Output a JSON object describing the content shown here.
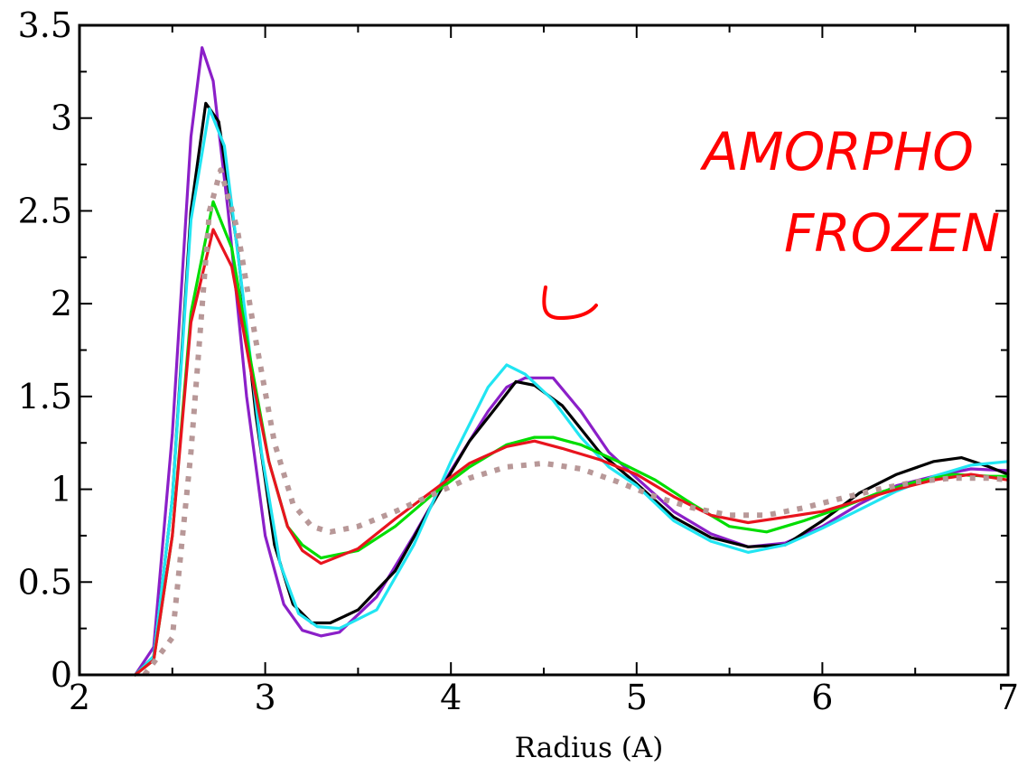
{
  "chart_data": {
    "type": "line",
    "title": "",
    "xlabel": "Radius (A)",
    "ylabel": "",
    "xlim": [
      2,
      7
    ],
    "ylim": [
      0,
      3.5
    ],
    "x_ticks": [
      2,
      3,
      4,
      5,
      6,
      7
    ],
    "x_tick_labels": [
      "2",
      "3",
      "4",
      "5",
      "6",
      "7"
    ],
    "y_ticks": [
      0,
      0.5,
      1,
      1.5,
      2,
      2.5,
      3,
      3.5
    ],
    "y_tick_labels": [
      "0",
      "0.5",
      "1",
      "1.5",
      "2",
      "2.5",
      "3",
      "3.5"
    ],
    "grid": false,
    "legend": "none",
    "series": [
      {
        "color": "#8b1fc8",
        "style": "solid",
        "points": [
          [
            2.3,
            0
          ],
          [
            2.4,
            0.15
          ],
          [
            2.5,
            1.3
          ],
          [
            2.6,
            2.9
          ],
          [
            2.66,
            3.38
          ],
          [
            2.72,
            3.2
          ],
          [
            2.8,
            2.5
          ],
          [
            2.9,
            1.5
          ],
          [
            3.0,
            0.75
          ],
          [
            3.1,
            0.38
          ],
          [
            3.2,
            0.24
          ],
          [
            3.3,
            0.21
          ],
          [
            3.4,
            0.23
          ],
          [
            3.6,
            0.42
          ],
          [
            3.8,
            0.75
          ],
          [
            4.0,
            1.1
          ],
          [
            4.2,
            1.42
          ],
          [
            4.3,
            1.55
          ],
          [
            4.4,
            1.6
          ],
          [
            4.55,
            1.6
          ],
          [
            4.7,
            1.42
          ],
          [
            4.85,
            1.2
          ],
          [
            5.0,
            1.06
          ],
          [
            5.2,
            0.88
          ],
          [
            5.4,
            0.76
          ],
          [
            5.6,
            0.69
          ],
          [
            5.8,
            0.71
          ],
          [
            6.0,
            0.8
          ],
          [
            6.2,
            0.92
          ],
          [
            6.4,
            1.02
          ],
          [
            6.6,
            1.07
          ],
          [
            6.8,
            1.11
          ],
          [
            7.0,
            1.1
          ]
        ]
      },
      {
        "color": "#000000",
        "style": "solid",
        "points": [
          [
            2.3,
            0
          ],
          [
            2.4,
            0.1
          ],
          [
            2.5,
            0.95
          ],
          [
            2.6,
            2.5
          ],
          [
            2.68,
            3.08
          ],
          [
            2.75,
            2.98
          ],
          [
            2.85,
            2.3
          ],
          [
            2.95,
            1.4
          ],
          [
            3.05,
            0.7
          ],
          [
            3.15,
            0.38
          ],
          [
            3.25,
            0.28
          ],
          [
            3.35,
            0.28
          ],
          [
            3.5,
            0.35
          ],
          [
            3.7,
            0.56
          ],
          [
            3.9,
            0.92
          ],
          [
            4.1,
            1.26
          ],
          [
            4.25,
            1.45
          ],
          [
            4.35,
            1.58
          ],
          [
            4.45,
            1.56
          ],
          [
            4.6,
            1.45
          ],
          [
            4.8,
            1.2
          ],
          [
            5.0,
            1.03
          ],
          [
            5.2,
            0.85
          ],
          [
            5.4,
            0.74
          ],
          [
            5.6,
            0.69
          ],
          [
            5.8,
            0.7
          ],
          [
            6.0,
            0.83
          ],
          [
            6.2,
            0.98
          ],
          [
            6.4,
            1.08
          ],
          [
            6.6,
            1.15
          ],
          [
            6.75,
            1.17
          ],
          [
            6.9,
            1.12
          ],
          [
            7.0,
            1.08
          ]
        ]
      },
      {
        "color": "#21e5f2",
        "style": "solid",
        "points": [
          [
            2.3,
            0
          ],
          [
            2.4,
            0.1
          ],
          [
            2.5,
            0.95
          ],
          [
            2.6,
            2.45
          ],
          [
            2.7,
            3.05
          ],
          [
            2.78,
            2.85
          ],
          [
            2.88,
            2.05
          ],
          [
            2.98,
            1.2
          ],
          [
            3.08,
            0.6
          ],
          [
            3.18,
            0.33
          ],
          [
            3.28,
            0.26
          ],
          [
            3.4,
            0.25
          ],
          [
            3.6,
            0.35
          ],
          [
            3.8,
            0.7
          ],
          [
            4.0,
            1.15
          ],
          [
            4.2,
            1.55
          ],
          [
            4.3,
            1.67
          ],
          [
            4.4,
            1.62
          ],
          [
            4.55,
            1.48
          ],
          [
            4.7,
            1.28
          ],
          [
            4.85,
            1.12
          ],
          [
            5.0,
            1.02
          ],
          [
            5.2,
            0.83
          ],
          [
            5.4,
            0.72
          ],
          [
            5.6,
            0.66
          ],
          [
            5.8,
            0.7
          ],
          [
            6.0,
            0.79
          ],
          [
            6.2,
            0.89
          ],
          [
            6.4,
            0.99
          ],
          [
            6.6,
            1.07
          ],
          [
            6.8,
            1.13
          ],
          [
            7.0,
            1.15
          ]
        ]
      },
      {
        "color": "#00dd00",
        "style": "solid",
        "points": [
          [
            2.3,
            0
          ],
          [
            2.4,
            0.08
          ],
          [
            2.5,
            0.75
          ],
          [
            2.6,
            1.95
          ],
          [
            2.72,
            2.55
          ],
          [
            2.82,
            2.3
          ],
          [
            2.92,
            1.7
          ],
          [
            3.02,
            1.15
          ],
          [
            3.12,
            0.8
          ],
          [
            3.2,
            0.7
          ],
          [
            3.3,
            0.63
          ],
          [
            3.5,
            0.67
          ],
          [
            3.7,
            0.8
          ],
          [
            3.9,
            0.97
          ],
          [
            4.1,
            1.12
          ],
          [
            4.3,
            1.24
          ],
          [
            4.45,
            1.28
          ],
          [
            4.55,
            1.28
          ],
          [
            4.7,
            1.24
          ],
          [
            4.9,
            1.15
          ],
          [
            5.1,
            1.05
          ],
          [
            5.3,
            0.92
          ],
          [
            5.5,
            0.8
          ],
          [
            5.7,
            0.77
          ],
          [
            5.9,
            0.83
          ],
          [
            6.1,
            0.9
          ],
          [
            6.3,
            0.98
          ],
          [
            6.5,
            1.04
          ],
          [
            6.7,
            1.08
          ],
          [
            6.9,
            1.07
          ],
          [
            7.0,
            1.07
          ]
        ]
      },
      {
        "color": "#e8141e",
        "style": "solid",
        "points": [
          [
            2.3,
            0
          ],
          [
            2.4,
            0.08
          ],
          [
            2.5,
            0.75
          ],
          [
            2.6,
            1.9
          ],
          [
            2.72,
            2.4
          ],
          [
            2.82,
            2.2
          ],
          [
            2.92,
            1.65
          ],
          [
            3.02,
            1.15
          ],
          [
            3.12,
            0.8
          ],
          [
            3.2,
            0.67
          ],
          [
            3.3,
            0.6
          ],
          [
            3.5,
            0.68
          ],
          [
            3.7,
            0.84
          ],
          [
            3.9,
            0.99
          ],
          [
            4.1,
            1.14
          ],
          [
            4.3,
            1.23
          ],
          [
            4.45,
            1.26
          ],
          [
            4.6,
            1.22
          ],
          [
            4.8,
            1.16
          ],
          [
            5.0,
            1.08
          ],
          [
            5.2,
            0.96
          ],
          [
            5.4,
            0.86
          ],
          [
            5.6,
            0.82
          ],
          [
            5.8,
            0.85
          ],
          [
            6.0,
            0.88
          ],
          [
            6.2,
            0.94
          ],
          [
            6.4,
            1.0
          ],
          [
            6.6,
            1.05
          ],
          [
            6.8,
            1.08
          ],
          [
            7.0,
            1.05
          ]
        ]
      },
      {
        "color": "#b89898",
        "style": "dotted",
        "points": [
          [
            2.35,
            0
          ],
          [
            2.5,
            0.2
          ],
          [
            2.6,
            1.2
          ],
          [
            2.7,
            2.5
          ],
          [
            2.76,
            2.72
          ],
          [
            2.85,
            2.4
          ],
          [
            2.95,
            1.8
          ],
          [
            3.05,
            1.25
          ],
          [
            3.15,
            0.92
          ],
          [
            3.25,
            0.8
          ],
          [
            3.35,
            0.77
          ],
          [
            3.5,
            0.8
          ],
          [
            3.7,
            0.88
          ],
          [
            3.9,
            0.97
          ],
          [
            4.1,
            1.06
          ],
          [
            4.3,
            1.12
          ],
          [
            4.5,
            1.14
          ],
          [
            4.7,
            1.11
          ],
          [
            4.9,
            1.04
          ],
          [
            5.1,
            0.96
          ],
          [
            5.3,
            0.9
          ],
          [
            5.5,
            0.86
          ],
          [
            5.7,
            0.86
          ],
          [
            5.9,
            0.9
          ],
          [
            6.1,
            0.95
          ],
          [
            6.3,
            1.0
          ],
          [
            6.5,
            1.04
          ],
          [
            6.7,
            1.06
          ],
          [
            6.9,
            1.06
          ],
          [
            7.0,
            1.05
          ]
        ]
      }
    ],
    "annotations": [
      {
        "text": "AMORPHO",
        "color": "#ff0000"
      },
      {
        "text": "FROZEN",
        "color": "#ff0000"
      }
    ]
  }
}
